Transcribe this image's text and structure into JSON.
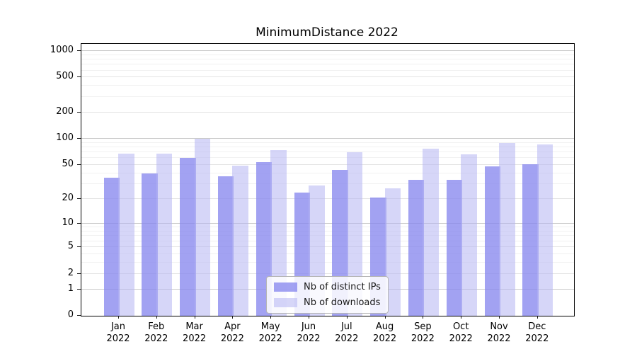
{
  "chart_data": {
    "type": "bar",
    "title": "MinimumDistance 2022",
    "xlabel": "",
    "ylabel": "",
    "scale": "log1p",
    "ylim": [
      0,
      1200
    ],
    "grid": true,
    "legend_position": "bottom-center-inside",
    "year_label": "2022",
    "categories": [
      "Jan",
      "Feb",
      "Mar",
      "Apr",
      "May",
      "Jun",
      "Jul",
      "Aug",
      "Sep",
      "Oct",
      "Nov",
      "Dec"
    ],
    "yticks": [
      0,
      1,
      2,
      5,
      10,
      20,
      50,
      100,
      200,
      500,
      1000
    ],
    "minor_gridline_values": [
      3,
      4,
      6,
      7,
      8,
      9,
      30,
      40,
      60,
      70,
      80,
      90,
      300,
      400,
      600,
      700,
      800,
      900
    ],
    "mid_gridline_values": [
      2,
      5,
      20,
      50,
      200,
      500
    ],
    "major_gridline_values": [
      1,
      10,
      100,
      1000
    ],
    "series": [
      {
        "name": "Nb of distinct IPs",
        "color": "rgba(136,136,238,0.78)",
        "values": [
          36,
          40,
          60,
          37,
          54,
          24,
          44,
          21,
          34,
          34,
          48,
          51
        ]
      },
      {
        "name": "Nb of downloads",
        "color": "rgba(180,180,242,0.55)",
        "values": [
          68,
          68,
          101,
          49,
          75,
          29,
          70,
          27,
          77,
          67,
          90,
          87
        ]
      }
    ],
    "colors": {
      "axis": "#000000",
      "major_grid": "#c9c9c9",
      "minor_grid": "#f1f1f1"
    }
  }
}
